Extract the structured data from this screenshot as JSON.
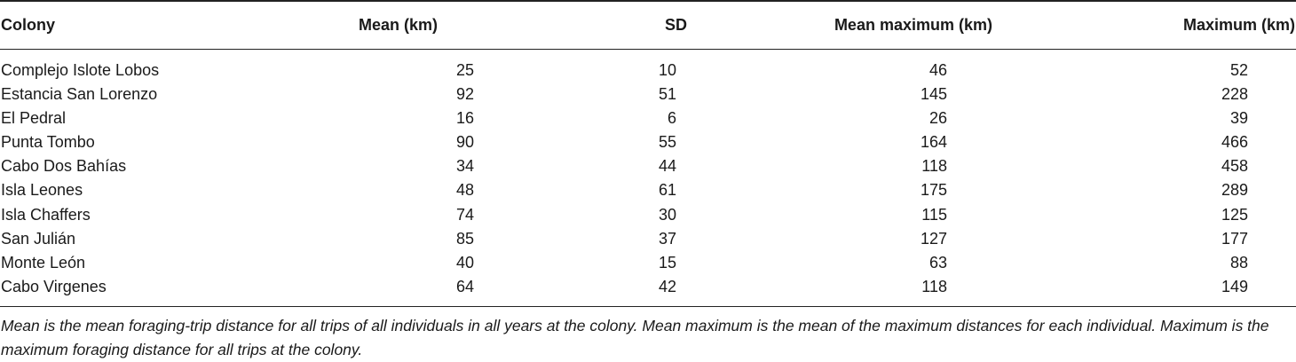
{
  "table": {
    "headers": {
      "colony": "Colony",
      "mean": "Mean (km)",
      "sd": "SD",
      "mean_max": "Mean maximum (km)",
      "max": "Maximum (km)"
    },
    "rows": [
      {
        "colony": "Complejo Islote Lobos",
        "mean": "25",
        "sd": "10",
        "mean_max": "46",
        "max": "52"
      },
      {
        "colony": "Estancia San Lorenzo",
        "mean": "92",
        "sd": "51",
        "mean_max": "145",
        "max": "228"
      },
      {
        "colony": "El Pedral",
        "mean": "16",
        "sd": "6",
        "mean_max": "26",
        "max": "39"
      },
      {
        "colony": "Punta Tombo",
        "mean": "90",
        "sd": "55",
        "mean_max": "164",
        "max": "466"
      },
      {
        "colony": "Cabo Dos Bahías",
        "mean": "34",
        "sd": "44",
        "mean_max": "118",
        "max": "458"
      },
      {
        "colony": "Isla Leones",
        "mean": "48",
        "sd": "61",
        "mean_max": "175",
        "max": "289"
      },
      {
        "colony": "Isla Chaffers",
        "mean": "74",
        "sd": "30",
        "mean_max": "115",
        "max": "125"
      },
      {
        "colony": "San Julián",
        "mean": "85",
        "sd": "37",
        "mean_max": "127",
        "max": "177"
      },
      {
        "colony": "Monte León",
        "mean": "40",
        "sd": "15",
        "mean_max": "63",
        "max": "88"
      },
      {
        "colony": "Cabo Virgenes",
        "mean": "64",
        "sd": "42",
        "mean_max": "118",
        "max": "149"
      }
    ]
  },
  "footnote": "Mean is the mean foraging-trip distance for all trips of all individuals in all years at the colony. Mean maximum is the mean of the maximum distances for each individual. Maximum is the maximum foraging distance for all trips at the colony."
}
